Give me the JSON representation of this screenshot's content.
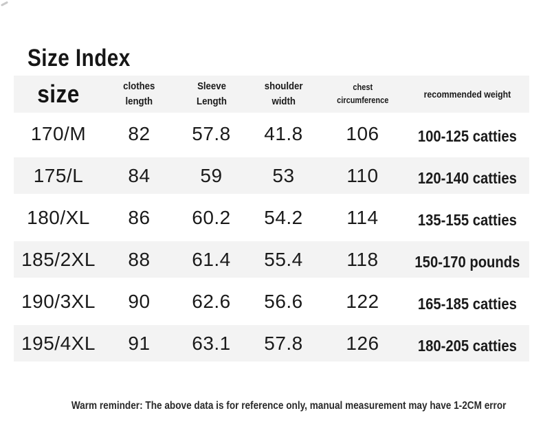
{
  "title": "Size Index",
  "colors": {
    "row_stripe": "#f3f3f3",
    "text": "#1a1a1a",
    "background": "#ffffff"
  },
  "table": {
    "columns": {
      "size": {
        "line1": "size"
      },
      "clothes": {
        "line1": "clothes",
        "line2": "length"
      },
      "sleeve": {
        "line1": "Sleeve",
        "line2": "Length"
      },
      "shoulder": {
        "line1": "shoulder",
        "line2": "width"
      },
      "chest": {
        "line1": "chest",
        "line2": "circumference"
      },
      "weight": {
        "line1": "recommended weight"
      }
    },
    "rows": [
      {
        "size": "170/M",
        "clothes": "82",
        "sleeve": "57.8",
        "shoulder": "41.8",
        "chest": "106",
        "weight": "100-125 catties"
      },
      {
        "size": "175/L",
        "clothes": "84",
        "sleeve": "59",
        "shoulder": "53",
        "chest": "110",
        "weight": "120-140 catties"
      },
      {
        "size": "180/XL",
        "clothes": "86",
        "sleeve": "60.2",
        "shoulder": "54.2",
        "chest": "114",
        "weight": "135-155 catties"
      },
      {
        "size": "185/2XL",
        "clothes": "88",
        "sleeve": "61.4",
        "shoulder": "55.4",
        "chest": "118",
        "weight": "150-170 pounds"
      },
      {
        "size": "190/3XL",
        "clothes": "90",
        "sleeve": "62.6",
        "shoulder": "56.6",
        "chest": "122",
        "weight": "165-185 catties"
      },
      {
        "size": "195/4XL",
        "clothes": "91",
        "sleeve": "63.1",
        "shoulder": "57.8",
        "chest": "126",
        "weight": "180-205 catties"
      }
    ]
  },
  "footer": {
    "reminder": "Warm reminder: The above data is for reference only, manual measurement may have 1-2CM error"
  }
}
